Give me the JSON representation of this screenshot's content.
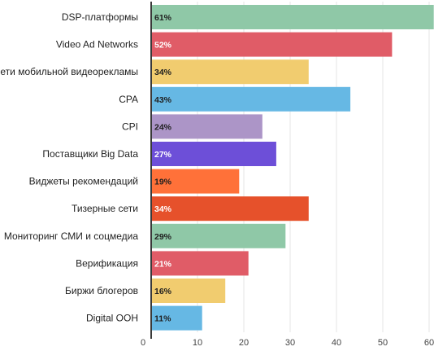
{
  "chart_data": {
    "type": "bar",
    "orientation": "horizontal",
    "categories": [
      "DSP-платформы",
      "Video Ad Networks",
      "Сети мобильной видеорекламы",
      "CPA",
      "CPI",
      "Поставщики Big Data",
      "Виджеты рекомендаций",
      "Тизерные сети",
      "Мониторинг СМИ и соцмедиа",
      "Верификация",
      "Биржи блогеров",
      "Digital OOH"
    ],
    "values": [
      61,
      52,
      34,
      43,
      24,
      27,
      19,
      34,
      29,
      21,
      16,
      11
    ],
    "data_labels": [
      "61%",
      "52%",
      "34%",
      "43%",
      "24%",
      "27%",
      "19%",
      "34%",
      "29%",
      "21%",
      "16%",
      "11%"
    ],
    "colors": [
      "#8fc8a7",
      "#e05c67",
      "#f1cc6f",
      "#66b8e4",
      "#ac95c7",
      "#6d4fd8",
      "#ff7139",
      "#e6512b",
      "#8fc8a7",
      "#e05c67",
      "#f1cc6f",
      "#66b8e4"
    ],
    "label_colors": [
      "#1f1f1f",
      "#ffffff",
      "#1f1f1f",
      "#1f1f1f",
      "#1f1f1f",
      "#ffffff",
      "#1f1f1f",
      "#ffffff",
      "#1f1f1f",
      "#ffffff",
      "#1f1f1f",
      "#1f1f1f"
    ],
    "x_ticks": [
      "0",
      "10",
      "20",
      "30",
      "40",
      "50",
      "60"
    ],
    "xlim": [
      0,
      62
    ],
    "grid": true,
    "title": "",
    "xlabel": "",
    "ylabel": ""
  }
}
